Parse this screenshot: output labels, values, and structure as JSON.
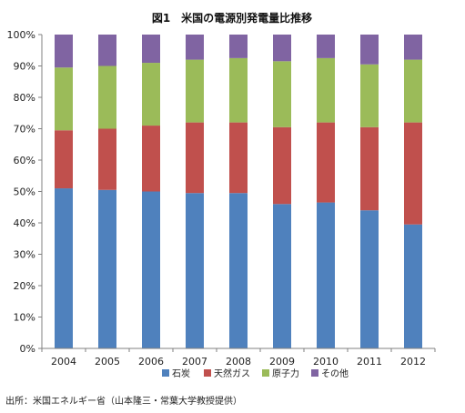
{
  "chart_data": {
    "type": "bar",
    "stacked": true,
    "title": "図1　米国の電源別発電量比推移",
    "categories": [
      "2004",
      "2005",
      "2006",
      "2007",
      "2008",
      "2009",
      "2010",
      "2011",
      "2012"
    ],
    "series": [
      {
        "name": "石炭",
        "color": "#4f81bd",
        "values": [
          51,
          50.5,
          50,
          49.5,
          49.5,
          46,
          46.5,
          44,
          39.5
        ]
      },
      {
        "name": "天然ガス",
        "color": "#c0504d",
        "values": [
          18.5,
          19.5,
          21,
          22.5,
          22.5,
          24.5,
          25.5,
          26.5,
          32.5
        ]
      },
      {
        "name": "原子力",
        "color": "#9bbb59",
        "values": [
          20,
          20,
          20,
          20,
          20.5,
          21,
          20.5,
          20,
          20
        ]
      },
      {
        "name": "その他",
        "color": "#8064a2",
        "values": [
          10.5,
          10,
          9,
          8,
          7.5,
          8.5,
          7.5,
          9.5,
          8
        ]
      }
    ],
    "ylim": [
      0,
      100
    ],
    "yticks": [
      "0%",
      "10%",
      "20%",
      "30%",
      "40%",
      "50%",
      "60%",
      "70%",
      "80%",
      "90%",
      "100%"
    ],
    "grid": false,
    "legend_position": "bottom"
  },
  "source_note": "出所：米国エネルギー省（山本隆三・常葉大学教授提供）"
}
